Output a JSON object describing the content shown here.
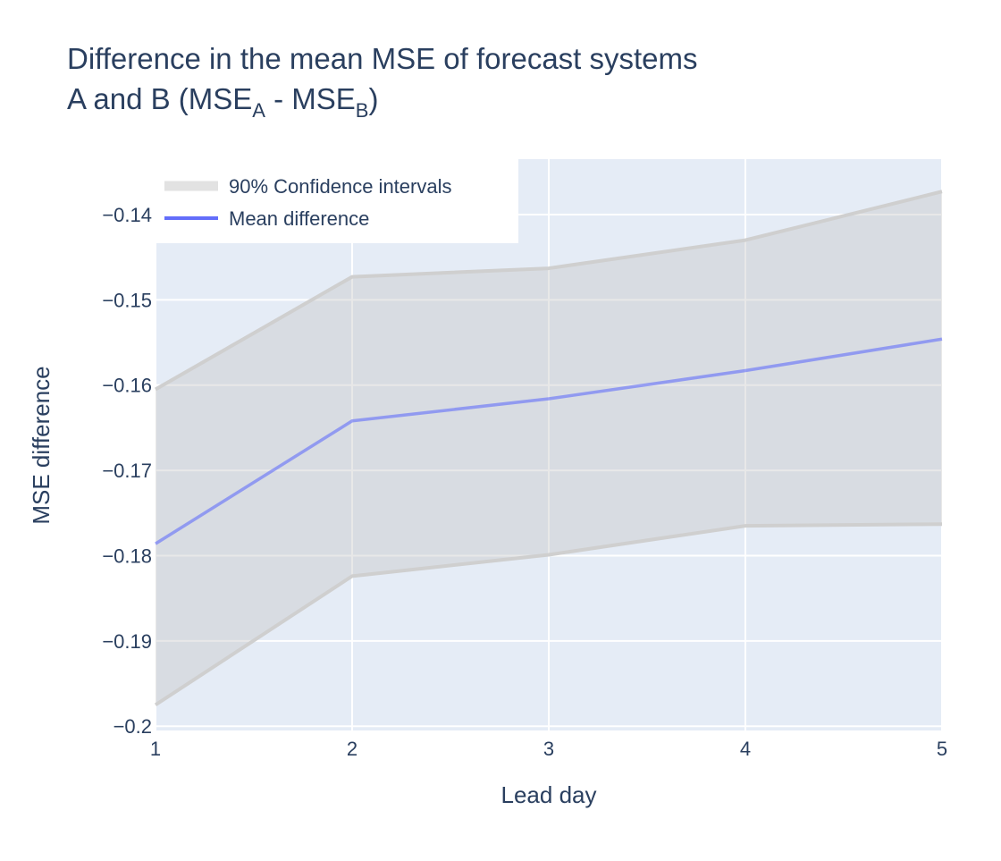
{
  "chart_data": {
    "type": "line",
    "title": {
      "line1": "Difference in the mean MSE of forecast systems",
      "line2_prefix": "A and B (MSE",
      "line2_sub_a": "A",
      "line2_mid": " - MSE",
      "line2_sub_b": "B",
      "line2_suffix": ")"
    },
    "xlabel": "Lead day",
    "ylabel": "MSE difference",
    "xlim": [
      1,
      5
    ],
    "ylim": [
      -0.2005,
      -0.1335
    ],
    "x_ticks": [
      1,
      2,
      3,
      4,
      5
    ],
    "y_ticks": [
      -0.2,
      -0.19,
      -0.18,
      -0.17,
      -0.16,
      -0.15,
      -0.14
    ],
    "y_tick_labels": [
      "−0.2",
      "−0.19",
      "−0.18",
      "−0.17",
      "−0.16",
      "−0.15",
      "−0.14"
    ],
    "grid": true,
    "legend_position": "top-left",
    "x": [
      1,
      2,
      3,
      4,
      5
    ],
    "series": [
      {
        "name": "90% Confidence intervals",
        "kind": "band",
        "upper": [
          -0.1605,
          -0.1473,
          -0.1463,
          -0.143,
          -0.1373
        ],
        "lower": [
          -0.1975,
          -0.1824,
          -0.1799,
          -0.1765,
          -0.1763
        ],
        "color": "#cfcfcf"
      },
      {
        "name": "Mean difference",
        "kind": "line",
        "values": [
          -0.1786,
          -0.1642,
          -0.1616,
          -0.1583,
          -0.1546
        ],
        "color": "#636efa"
      }
    ],
    "colors": {
      "plot_background": "#e5ecf6",
      "grid": "#ffffff",
      "text": "#2a3f5f"
    }
  }
}
